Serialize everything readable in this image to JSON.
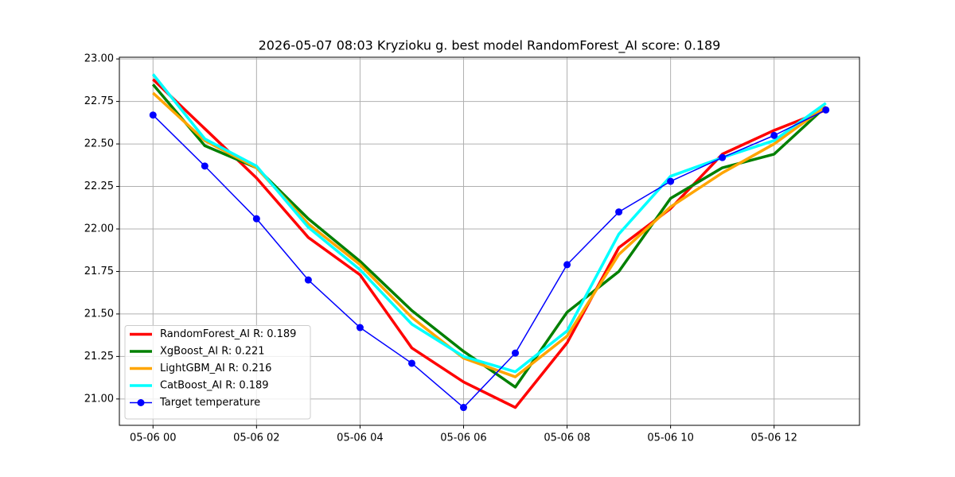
{
  "chart_data": {
    "type": "line",
    "title": "2026-05-07 08:03 Kryzioku g. best model RandomForest_AI score: 0.189",
    "x": [
      0,
      1,
      2,
      3,
      4,
      5,
      6,
      7,
      8,
      9,
      10,
      11,
      12,
      13
    ],
    "xlim": [
      -0.65,
      13.65
    ],
    "xticks": [
      {
        "value": 0,
        "label": "05-06 00"
      },
      {
        "value": 2,
        "label": "05-06 02"
      },
      {
        "value": 4,
        "label": "05-06 04"
      },
      {
        "value": 6,
        "label": "05-06 06"
      },
      {
        "value": 8,
        "label": "05-06 08"
      },
      {
        "value": 10,
        "label": "05-06 10"
      },
      {
        "value": 12,
        "label": "05-06 12"
      }
    ],
    "ylim": [
      20.845,
      23.01
    ],
    "yticks": [
      {
        "value": 21,
        "label": "21.00"
      },
      {
        "value": 21.25,
        "label": "21.25"
      },
      {
        "value": 21.5,
        "label": "21.50"
      },
      {
        "value": 21.75,
        "label": "21.75"
      },
      {
        "value": 22,
        "label": "22.00"
      },
      {
        "value": 22.25,
        "label": "22.25"
      },
      {
        "value": 22.5,
        "label": "22.50"
      },
      {
        "value": 22.75,
        "label": "22.75"
      },
      {
        "value": 23,
        "label": "23.00"
      }
    ],
    "grid": true,
    "legend": "lower left",
    "series": [
      {
        "name": "RandomForest_AI R: 0.189",
        "color": "#ff0000",
        "width": 3.5,
        "values": [
          22.88,
          22.59,
          22.3,
          21.95,
          21.73,
          21.3,
          21.1,
          20.95,
          21.33,
          21.89,
          22.12,
          22.44,
          22.58,
          22.7
        ]
      },
      {
        "name": "XgBoost_AI R: 0.221",
        "color": "#008000",
        "width": 3.5,
        "values": [
          22.85,
          22.49,
          22.36,
          22.06,
          21.81,
          21.52,
          21.28,
          21.07,
          21.51,
          21.75,
          22.18,
          22.36,
          22.44,
          22.72
        ]
      },
      {
        "name": "LightGBM_AI R: 0.216",
        "color": "#ffa500",
        "width": 3.5,
        "values": [
          22.8,
          22.52,
          22.36,
          22.03,
          21.79,
          21.48,
          21.24,
          21.13,
          21.37,
          21.85,
          22.13,
          22.33,
          22.5,
          22.72
        ]
      },
      {
        "name": "CatBoost_AI R: 0.189",
        "color": "#00ffff",
        "width": 3.5,
        "values": [
          22.91,
          22.53,
          22.37,
          22.01,
          21.76,
          21.44,
          21.25,
          21.16,
          21.4,
          21.97,
          22.31,
          22.42,
          22.52,
          22.74
        ]
      },
      {
        "name": "Target temperature",
        "color": "#0000ff",
        "width": 1.5,
        "marker": "o",
        "values": [
          22.67,
          22.37,
          22.06,
          21.7,
          21.42,
          21.21,
          20.95,
          21.27,
          21.79,
          22.1,
          22.28,
          22.42,
          22.55,
          22.7
        ]
      }
    ]
  }
}
